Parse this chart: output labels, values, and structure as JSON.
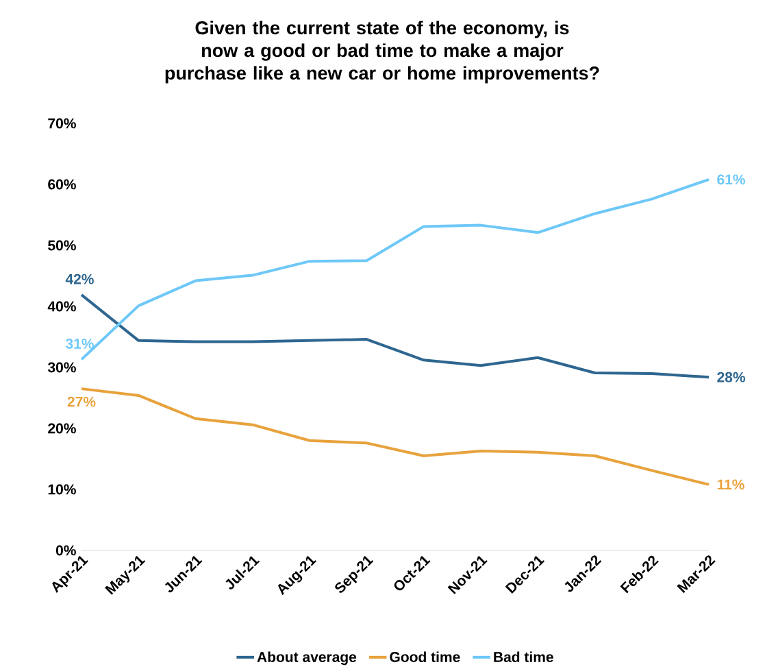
{
  "chart_data": {
    "type": "line",
    "title": "Given the current state of the economy, is now a good or bad time to make a major purchase like a new car or home improvements?",
    "categories": [
      "Apr-21",
      "May-21",
      "Jun-21",
      "Jul-21",
      "Aug-21",
      "Sep-21",
      "Oct-21",
      "Nov-21",
      "Dec-21",
      "Jan-22",
      "Feb-22",
      "Mar-22"
    ],
    "series": [
      {
        "name": "About average",
        "color": "#2e6690",
        "values": [
          41.9,
          34.4,
          34.2,
          34.2,
          34.4,
          34.6,
          31.2,
          30.3,
          31.6,
          29.1,
          29.0,
          28.4
        ],
        "value_labels": [
          "42%",
          null,
          null,
          null,
          null,
          null,
          null,
          null,
          null,
          null,
          null,
          "28%"
        ]
      },
      {
        "name": "Good time",
        "color": "#e8a23c",
        "values": [
          26.5,
          25.4,
          21.6,
          20.6,
          18.0,
          17.6,
          15.5,
          16.3,
          16.1,
          15.5,
          13.1,
          10.8
        ],
        "value_labels": [
          "27%",
          null,
          null,
          null,
          null,
          null,
          null,
          null,
          null,
          null,
          null,
          "11%"
        ]
      },
      {
        "name": "Bad time",
        "color": "#6ec8f8",
        "values": [
          31.3,
          40.1,
          44.2,
          45.1,
          47.4,
          47.5,
          53.1,
          53.3,
          52.1,
          55.2,
          57.6,
          60.8
        ],
        "value_labels": [
          "31%",
          null,
          null,
          null,
          null,
          null,
          null,
          null,
          null,
          null,
          null,
          "61%"
        ]
      }
    ],
    "ylim": [
      0,
      70
    ],
    "yticks": [
      {
        "value": 0,
        "label": "0%"
      },
      {
        "value": 10,
        "label": "10%"
      },
      {
        "value": 20,
        "label": "20%"
      },
      {
        "value": 30,
        "label": "30%"
      },
      {
        "value": 40,
        "label": "40%"
      },
      {
        "value": 50,
        "label": "50%"
      },
      {
        "value": 60,
        "label": "60%"
      },
      {
        "value": 70,
        "label": "70%"
      }
    ],
    "legend": "bottom",
    "marker": "none",
    "line_style": "solid"
  }
}
